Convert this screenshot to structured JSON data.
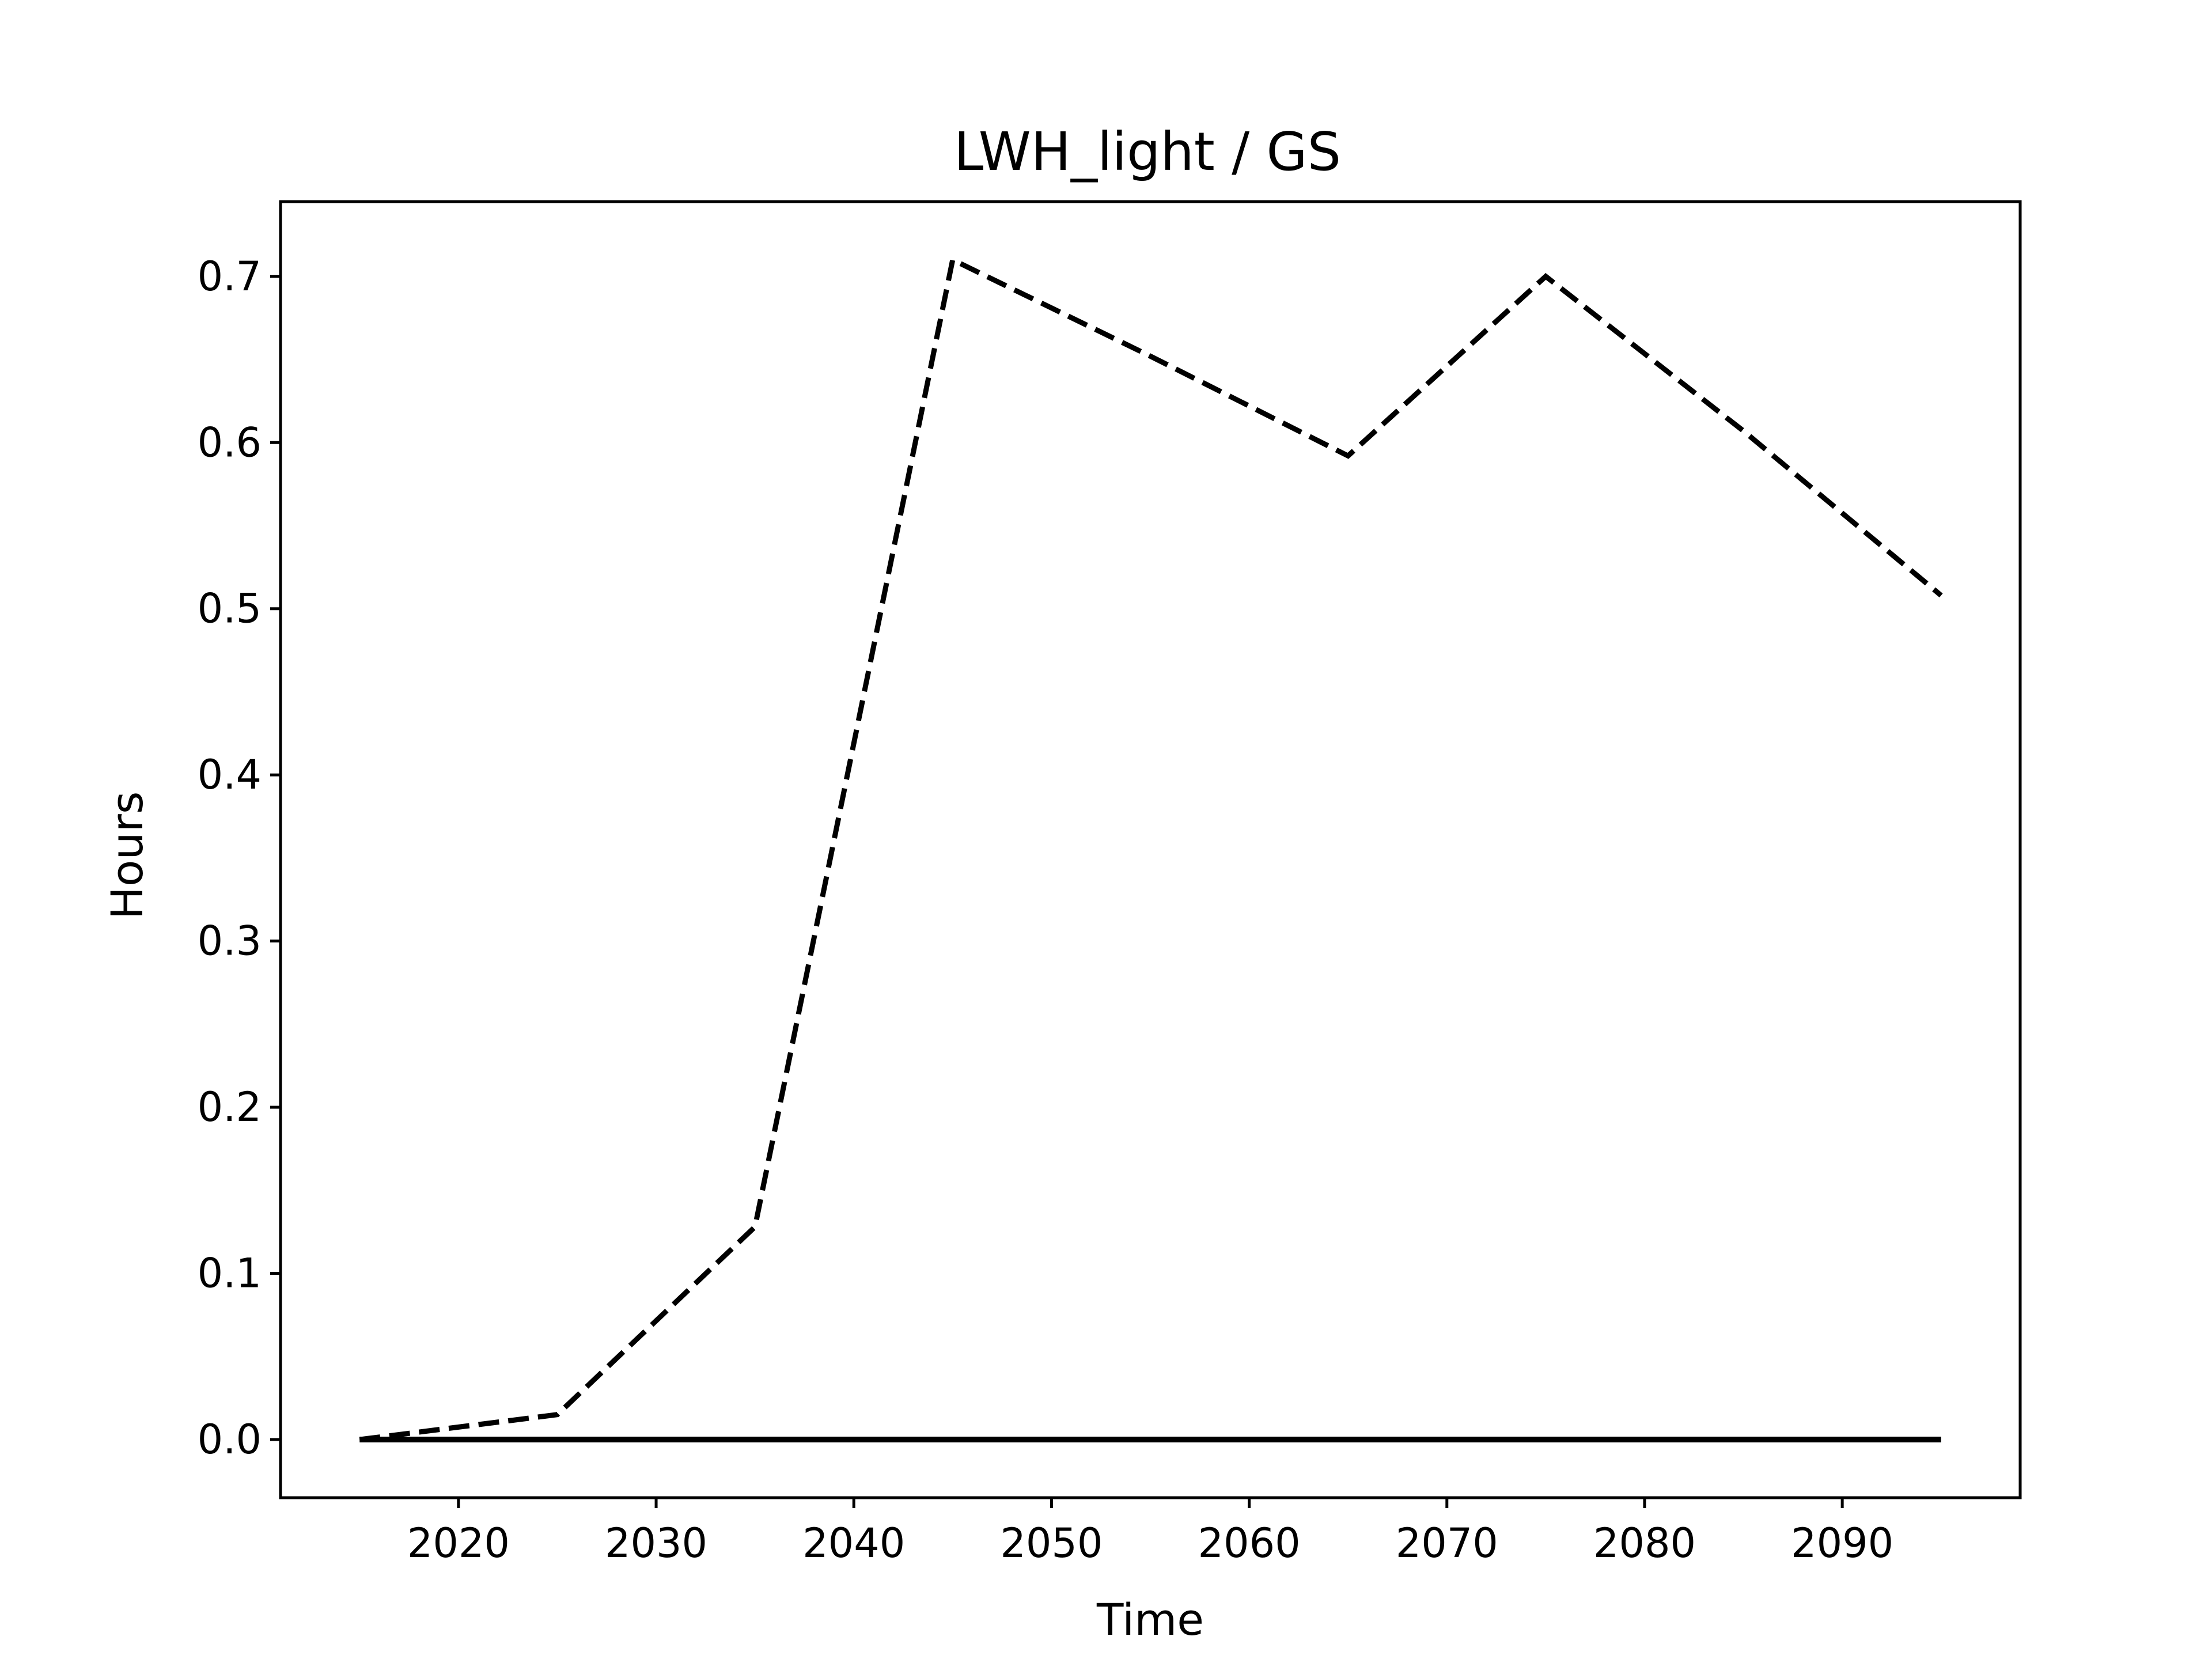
{
  "chart_data": {
    "type": "line",
    "title": "LWH_light / GS",
    "xlabel": "Time",
    "ylabel": "Hours",
    "x": [
      2015,
      2025,
      2035,
      2045,
      2055,
      2065,
      2075,
      2085,
      2095
    ],
    "series": [
      {
        "style": "dashed",
        "color": "#000000",
        "values": [
          0.0,
          0.015,
          0.128,
          0.71,
          0.652,
          0.592,
          0.7,
          0.607,
          0.508
        ]
      },
      {
        "style": "solid",
        "color": "#000000",
        "values": [
          0.0,
          0.0,
          0.0,
          0.0,
          0.0,
          0.0,
          0.0,
          0.0,
          0.0
        ]
      }
    ],
    "xlim": [
      2011,
      2099
    ],
    "ylim": [
      -0.035,
      0.745
    ],
    "xticks": [
      2020,
      2030,
      2040,
      2050,
      2060,
      2070,
      2080,
      2090
    ],
    "xtick_labels": [
      "2020",
      "2030",
      "2040",
      "2050",
      "2060",
      "2070",
      "2080",
      "2090"
    ],
    "yticks": [
      0.0,
      0.1,
      0.2,
      0.3,
      0.4,
      0.5,
      0.6,
      0.7
    ],
    "ytick_labels": [
      "0.0",
      "0.1",
      "0.2",
      "0.3",
      "0.4",
      "0.5",
      "0.6",
      "0.7"
    ],
    "grid": false,
    "legend": false
  }
}
